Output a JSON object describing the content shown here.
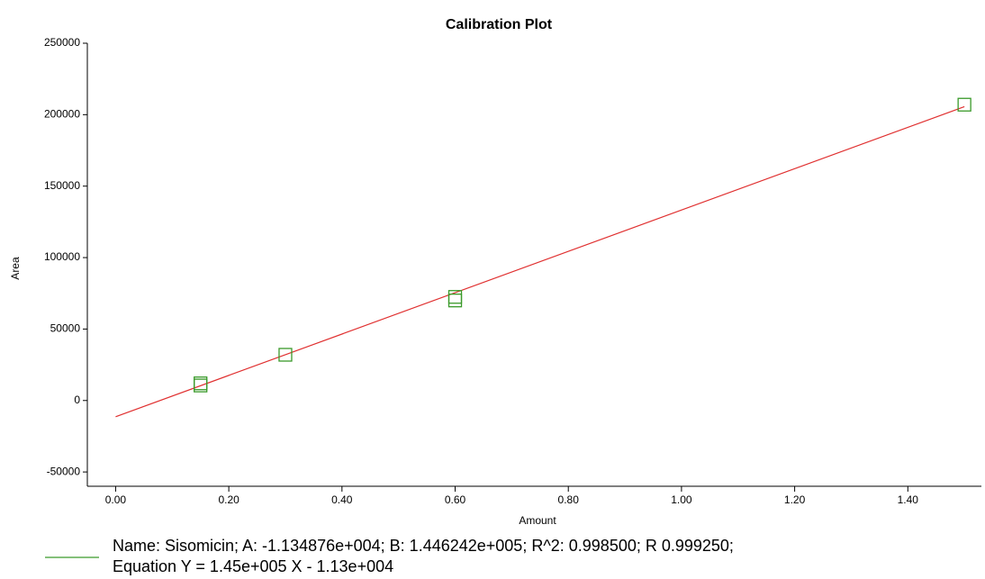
{
  "chart_data": {
    "type": "scatter",
    "title": "Calibration Plot",
    "x_label": "Amount",
    "y_label": "Area",
    "xlim": [
      -0.05,
      1.53
    ],
    "ylim": [
      -60000,
      250000
    ],
    "xticks": [
      {
        "value": 0,
        "label": "0.00"
      },
      {
        "value": 0.2,
        "label": "0.20"
      },
      {
        "value": 0.4,
        "label": "0.40"
      },
      {
        "value": 0.6,
        "label": "0.60"
      },
      {
        "value": 0.8,
        "label": "0.80"
      },
      {
        "value": 1.0,
        "label": "1.00"
      },
      {
        "value": 1.2,
        "label": "1.20"
      },
      {
        "value": 1.4,
        "label": "1.40"
      }
    ],
    "yticks": [
      -50000,
      0,
      50000,
      100000,
      150000,
      200000,
      250000
    ],
    "points": {
      "color": "#3a9a2a",
      "x": [
        0.15,
        0.15,
        0.3,
        0.6,
        0.6,
        1.5
      ],
      "values": [
        10500,
        12000,
        32000,
        70000,
        72500,
        207000
      ]
    },
    "fit": {
      "color": "#e03030",
      "x": [
        0,
        1.5
      ],
      "values": [
        -11349,
        205587
      ]
    },
    "legend": {
      "color": "#3a9a2a",
      "lines": [
        "Name: Sisomicin;   A: -1.134876e+004;   B: 1.446242e+005;   R^2: 0.998500; R 0.999250;",
        "Equation Y = 1.45e+005 X - 1.13e+004"
      ]
    }
  }
}
